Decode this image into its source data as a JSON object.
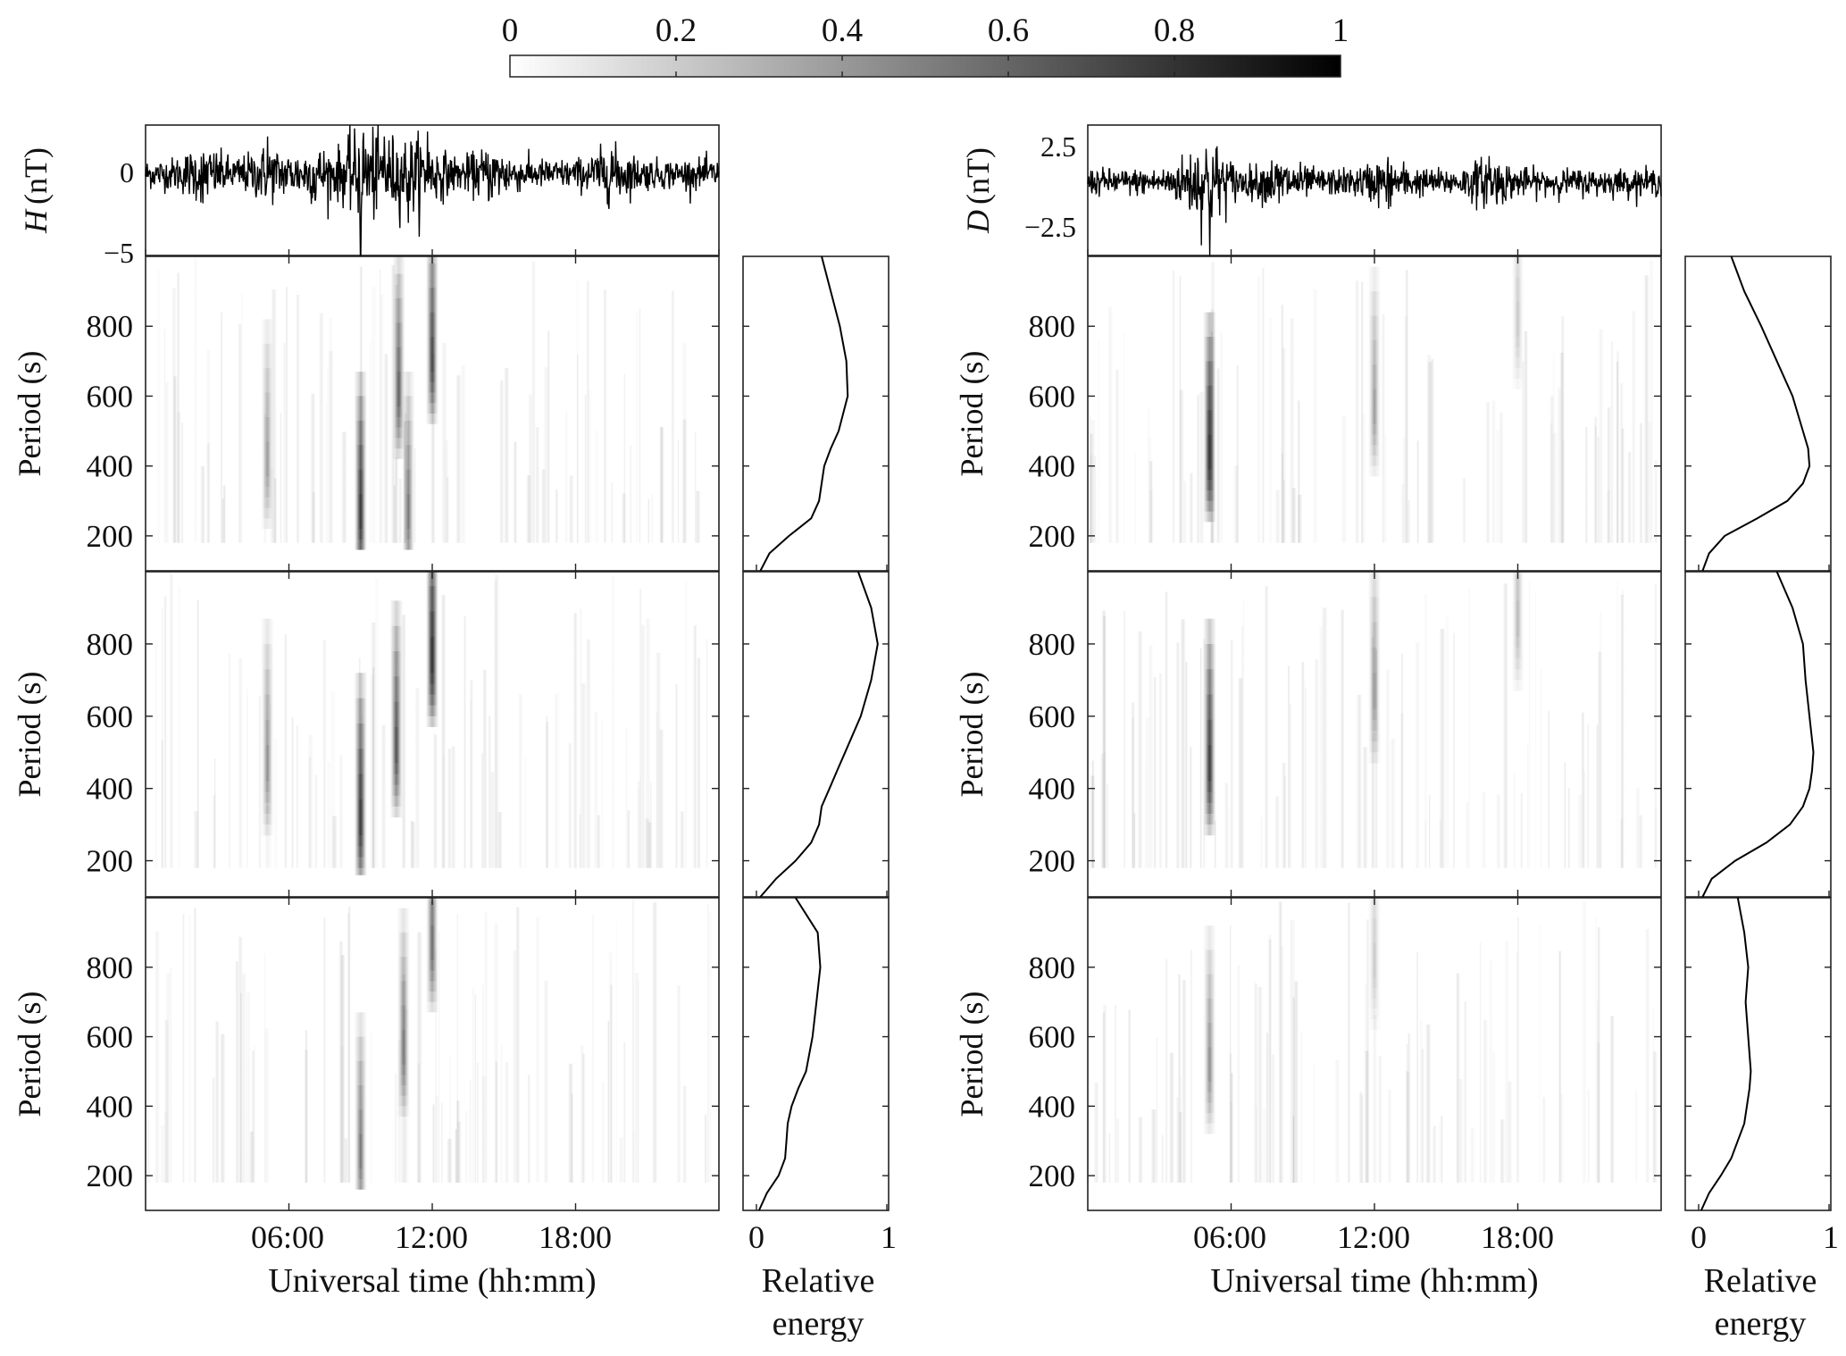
{
  "colorbar": {
    "tick_labels": [
      "0",
      "0.2",
      "0.4",
      "0.6",
      "0.8",
      "1"
    ],
    "range": [
      0,
      1
    ],
    "color_low": "#ffffff",
    "color_high": "#000000"
  },
  "axes_text": {
    "period_label": "Period (s)",
    "xlabel": "Universal time (hh:mm)",
    "energy_label_line1": "Relative",
    "energy_label_line2": "energy",
    "period_ticks": [
      "200",
      "400",
      "600",
      "800"
    ],
    "time_ticks": [
      "06:00",
      "12:00",
      "18:00"
    ],
    "energy_ticks": [
      "0",
      "1"
    ]
  },
  "chart_data": [
    {
      "type": "line",
      "panel": "H",
      "ylabel_var": "H",
      "ylabel_unit": "(nT)",
      "y_ticks": [
        "0",
        "−5"
      ],
      "ylim": [
        -5,
        3
      ],
      "xlim_hours": [
        0,
        24
      ],
      "notable_spikes": [
        {
          "t": 9.0,
          "v": -5.0
        },
        {
          "t": 9.1,
          "v": 2.0
        },
        {
          "t": 10.0,
          "v": 2.3
        },
        {
          "t": 11.8,
          "v": 2.6
        },
        {
          "t": 11.0,
          "v": -3.0
        },
        {
          "t": 5.1,
          "v": 2.3
        },
        {
          "t": 2.4,
          "v": -1.8
        },
        {
          "t": 7.1,
          "v": -1.6
        },
        {
          "t": 19.5,
          "v": 1.4
        },
        {
          "t": 14.5,
          "v": -1.4
        }
      ]
    },
    {
      "type": "heatmap",
      "panel": "H-scalogram-1",
      "x": "time (hours, 0-24)",
      "y": "period (s)",
      "ylim": [
        100,
        1000
      ],
      "xlim_hours": [
        0,
        24
      ],
      "bright_bands": [
        {
          "t": 9.0,
          "p_peak": 250,
          "strength": 0.8
        },
        {
          "t": 10.6,
          "p_peak": 600,
          "strength": 0.55
        },
        {
          "t": 12.0,
          "p_peak": 700,
          "strength": 0.7
        },
        {
          "t": 11.0,
          "p_peak": 250,
          "strength": 0.45
        },
        {
          "t": 5.1,
          "p_peak": 400,
          "strength": 0.3
        }
      ],
      "energy_profile": {
        "period": [
          100,
          150,
          200,
          250,
          300,
          350,
          400,
          450,
          500,
          600,
          700,
          800,
          900,
          1000
        ],
        "energy": [
          0.03,
          0.1,
          0.25,
          0.42,
          0.48,
          0.5,
          0.52,
          0.57,
          0.63,
          0.7,
          0.69,
          0.64,
          0.57,
          0.5
        ]
      }
    },
    {
      "type": "heatmap",
      "panel": "H-scalogram-2",
      "ylim": [
        100,
        1000
      ],
      "xlim_hours": [
        0,
        24
      ],
      "bright_bands": [
        {
          "t": 9.0,
          "p_peak": 300,
          "strength": 0.8
        },
        {
          "t": 10.5,
          "p_peak": 500,
          "strength": 0.65
        },
        {
          "t": 12.0,
          "p_peak": 750,
          "strength": 0.9
        },
        {
          "t": 5.1,
          "p_peak": 450,
          "strength": 0.35
        }
      ],
      "energy_profile": {
        "period": [
          100,
          150,
          200,
          250,
          300,
          350,
          400,
          450,
          500,
          600,
          700,
          800,
          900,
          1000
        ],
        "energy": [
          0.03,
          0.15,
          0.3,
          0.42,
          0.48,
          0.5,
          0.56,
          0.62,
          0.68,
          0.8,
          0.88,
          0.93,
          0.88,
          0.78
        ]
      }
    },
    {
      "type": "heatmap",
      "panel": "H-scalogram-3",
      "ylim": [
        100,
        1000
      ],
      "xlim_hours": [
        0,
        24
      ],
      "bright_bands": [
        {
          "t": 9.0,
          "p_peak": 250,
          "strength": 0.45
        },
        {
          "t": 10.8,
          "p_peak": 550,
          "strength": 0.4
        },
        {
          "t": 12.0,
          "p_peak": 850,
          "strength": 0.5
        }
      ],
      "energy_profile": {
        "period": [
          100,
          150,
          200,
          250,
          300,
          350,
          400,
          450,
          500,
          600,
          700,
          800,
          900,
          1000
        ],
        "energy": [
          0.02,
          0.08,
          0.17,
          0.22,
          0.23,
          0.24,
          0.27,
          0.32,
          0.38,
          0.43,
          0.46,
          0.49,
          0.47,
          0.3
        ]
      }
    },
    {
      "type": "line",
      "panel": "D",
      "ylabel_var": "D",
      "ylabel_unit": "(nT)",
      "y_ticks": [
        "2.5",
        "−2.5"
      ],
      "ylim": [
        -4.5,
        3.5
      ],
      "xlim_hours": [
        0,
        24
      ],
      "notable_spikes": [
        {
          "t": 5.1,
          "v": 3.5
        },
        {
          "t": 5.1,
          "v": -4.5
        },
        {
          "t": 4.5,
          "v": 1.2
        },
        {
          "t": 16.8,
          "v": 1.6
        },
        {
          "t": 8.0,
          "v": -1.3
        },
        {
          "t": 12.5,
          "v": -1.2
        }
      ]
    },
    {
      "type": "heatmap",
      "panel": "D-scalogram-1",
      "ylim": [
        100,
        1000
      ],
      "xlim_hours": [
        0,
        24
      ],
      "bright_bands": [
        {
          "t": 5.1,
          "p_peak": 420,
          "strength": 0.9
        },
        {
          "t": 12.0,
          "p_peak": 550,
          "strength": 0.3
        },
        {
          "t": 18.0,
          "p_peak": 800,
          "strength": 0.15
        }
      ],
      "energy_profile": {
        "period": [
          100,
          150,
          200,
          250,
          300,
          350,
          400,
          450,
          500,
          600,
          700,
          800,
          900,
          1000
        ],
        "energy": [
          0.03,
          0.08,
          0.2,
          0.45,
          0.68,
          0.8,
          0.85,
          0.84,
          0.8,
          0.72,
          0.6,
          0.48,
          0.35,
          0.25
        ]
      }
    },
    {
      "type": "heatmap",
      "panel": "D-scalogram-2",
      "ylim": [
        100,
        1000
      ],
      "xlim_hours": [
        0,
        24
      ],
      "bright_bands": [
        {
          "t": 5.1,
          "p_peak": 450,
          "strength": 0.8
        },
        {
          "t": 12.0,
          "p_peak": 650,
          "strength": 0.3
        },
        {
          "t": 18.0,
          "p_peak": 850,
          "strength": 0.2
        }
      ],
      "energy_profile": {
        "period": [
          100,
          150,
          200,
          250,
          300,
          350,
          400,
          450,
          500,
          600,
          700,
          800,
          900,
          1000
        ],
        "energy": [
          0.03,
          0.1,
          0.28,
          0.52,
          0.7,
          0.8,
          0.85,
          0.87,
          0.88,
          0.85,
          0.82,
          0.8,
          0.72,
          0.6
        ]
      }
    },
    {
      "type": "heatmap",
      "panel": "D-scalogram-3",
      "ylim": [
        100,
        1000
      ],
      "xlim_hours": [
        0,
        24
      ],
      "bright_bands": [
        {
          "t": 5.1,
          "p_peak": 500,
          "strength": 0.35
        },
        {
          "t": 12.0,
          "p_peak": 800,
          "strength": 0.15
        }
      ],
      "energy_profile": {
        "period": [
          100,
          150,
          200,
          250,
          300,
          350,
          400,
          450,
          500,
          600,
          700,
          800,
          900,
          1000
        ],
        "energy": [
          0.02,
          0.08,
          0.17,
          0.25,
          0.3,
          0.35,
          0.37,
          0.39,
          0.4,
          0.38,
          0.36,
          0.38,
          0.35,
          0.3
        ]
      }
    }
  ]
}
